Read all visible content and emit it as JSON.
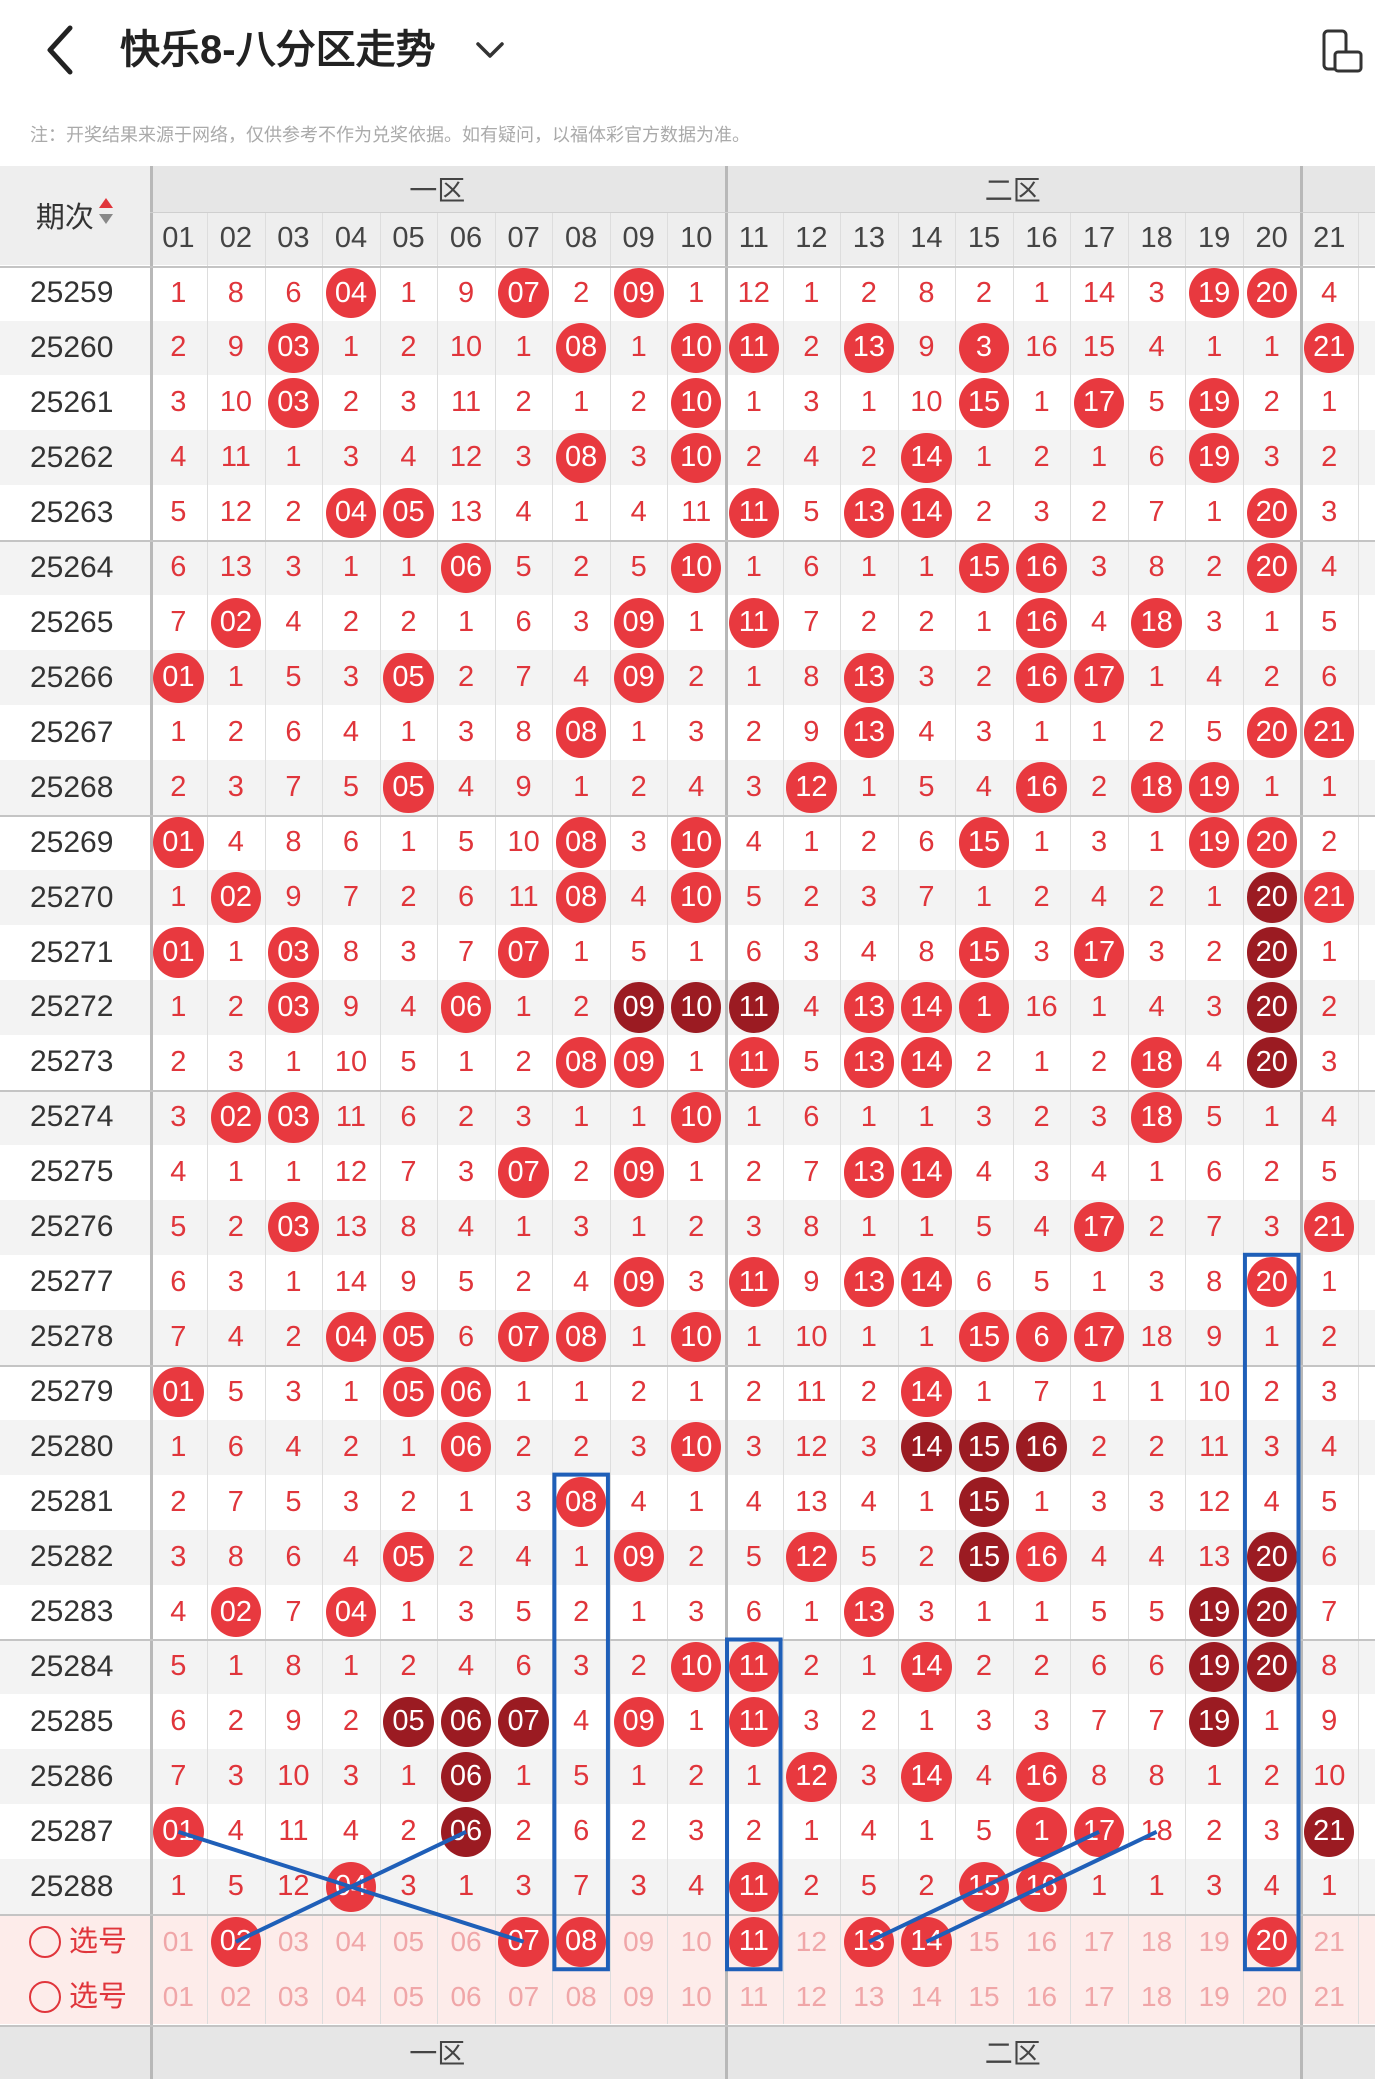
{
  "header": {
    "title": "快乐8-八分区走势",
    "note": "注：开奖结果来源于网络，仅供参考不作为兑奖依据。如有疑问，以福体彩官方数据为准。"
  },
  "table": {
    "period_header": "期次",
    "zones": [
      "一区",
      "二区"
    ],
    "columns": [
      "01",
      "02",
      "03",
      "04",
      "05",
      "06",
      "07",
      "08",
      "09",
      "10",
      "11",
      "12",
      "13",
      "14",
      "15",
      "16",
      "17",
      "18",
      "19",
      "20",
      "21"
    ],
    "periods": [
      "25259",
      "25260",
      "25261",
      "25262",
      "25263",
      "25264",
      "25265",
      "25266",
      "25267",
      "25268",
      "25269",
      "25270",
      "25271",
      "25272",
      "25273",
      "25274",
      "25275",
      "25276",
      "25277",
      "25278",
      "25279",
      "25280",
      "25281",
      "25282",
      "25283",
      "25284",
      "25285",
      "25286",
      "25287",
      "25288"
    ],
    "rows": [
      [
        "1",
        "8",
        "6",
        "04",
        "1",
        "9",
        "07",
        "2",
        "09",
        "1",
        "12",
        "1",
        "2",
        "8",
        "2",
        "1",
        "14",
        "3",
        "19",
        "20",
        "4"
      ],
      [
        "2",
        "9",
        "03",
        "1",
        "2",
        "10",
        "1",
        "08",
        "1",
        "10",
        "11",
        "2",
        "13",
        "9",
        "3",
        "16",
        "15",
        "4",
        "1",
        "1",
        "21"
      ],
      [
        "3",
        "10",
        "03",
        "2",
        "3",
        "11",
        "2",
        "1",
        "2",
        "10",
        "1",
        "3",
        "1",
        "10",
        "15",
        "1",
        "17",
        "5",
        "19",
        "2",
        "1"
      ],
      [
        "4",
        "11",
        "1",
        "3",
        "4",
        "12",
        "3",
        "08",
        "3",
        "10",
        "2",
        "4",
        "2",
        "14",
        "1",
        "2",
        "1",
        "6",
        "19",
        "3",
        "2"
      ],
      [
        "5",
        "12",
        "2",
        "04",
        "05",
        "13",
        "4",
        "1",
        "4",
        "11",
        "11",
        "5",
        "13",
        "14",
        "2",
        "3",
        "2",
        "7",
        "1",
        "20",
        "3"
      ],
      [
        "6",
        "13",
        "3",
        "1",
        "1",
        "06",
        "5",
        "2",
        "5",
        "10",
        "1",
        "6",
        "1",
        "1",
        "15",
        "16",
        "3",
        "8",
        "2",
        "20",
        "4"
      ],
      [
        "7",
        "02",
        "4",
        "2",
        "2",
        "1",
        "6",
        "3",
        "09",
        "1",
        "11",
        "7",
        "2",
        "2",
        "1",
        "16",
        "4",
        "18",
        "3",
        "1",
        "5"
      ],
      [
        "01",
        "1",
        "5",
        "3",
        "05",
        "2",
        "7",
        "4",
        "09",
        "2",
        "1",
        "8",
        "13",
        "3",
        "2",
        "16",
        "17",
        "1",
        "4",
        "2",
        "6"
      ],
      [
        "1",
        "2",
        "6",
        "4",
        "1",
        "3",
        "8",
        "08",
        "1",
        "3",
        "2",
        "9",
        "13",
        "4",
        "3",
        "1",
        "1",
        "2",
        "5",
        "20",
        "21"
      ],
      [
        "2",
        "3",
        "7",
        "5",
        "05",
        "4",
        "9",
        "1",
        "2",
        "4",
        "3",
        "12",
        "1",
        "5",
        "4",
        "16",
        "2",
        "18",
        "19",
        "1",
        "1"
      ],
      [
        "01",
        "4",
        "8",
        "6",
        "1",
        "5",
        "10",
        "08",
        "3",
        "10",
        "4",
        "1",
        "2",
        "6",
        "15",
        "1",
        "3",
        "1",
        "19",
        "20",
        "2"
      ],
      [
        "1",
        "02",
        "9",
        "7",
        "2",
        "6",
        "11",
        "08",
        "4",
        "10",
        "5",
        "2",
        "3",
        "7",
        "1",
        "2",
        "4",
        "2",
        "1",
        "20",
        "21"
      ],
      [
        "01",
        "1",
        "03",
        "8",
        "3",
        "7",
        "07",
        "1",
        "5",
        "1",
        "6",
        "3",
        "4",
        "8",
        "15",
        "3",
        "17",
        "3",
        "2",
        "20",
        "1"
      ],
      [
        "1",
        "2",
        "03",
        "9",
        "4",
        "06",
        "1",
        "2",
        "09",
        "10",
        "11",
        "4",
        "13",
        "14",
        "1",
        "16",
        "1",
        "4",
        "3",
        "20",
        "2"
      ],
      [
        "2",
        "3",
        "1",
        "10",
        "5",
        "1",
        "2",
        "08",
        "09",
        "1",
        "11",
        "5",
        "13",
        "14",
        "2",
        "1",
        "2",
        "18",
        "4",
        "20",
        "3"
      ],
      [
        "3",
        "02",
        "03",
        "11",
        "6",
        "2",
        "3",
        "1",
        "1",
        "10",
        "1",
        "6",
        "1",
        "1",
        "3",
        "2",
        "3",
        "18",
        "5",
        "1",
        "4"
      ],
      [
        "4",
        "1",
        "1",
        "12",
        "7",
        "3",
        "07",
        "2",
        "09",
        "1",
        "2",
        "7",
        "13",
        "14",
        "4",
        "3",
        "4",
        "1",
        "6",
        "2",
        "5"
      ],
      [
        "5",
        "2",
        "03",
        "13",
        "8",
        "4",
        "1",
        "3",
        "1",
        "2",
        "3",
        "8",
        "1",
        "1",
        "5",
        "4",
        "17",
        "2",
        "7",
        "3",
        "21"
      ],
      [
        "6",
        "3",
        "1",
        "14",
        "9",
        "5",
        "2",
        "4",
        "09",
        "3",
        "11",
        "9",
        "13",
        "14",
        "6",
        "5",
        "1",
        "3",
        "8",
        "20",
        "1"
      ],
      [
        "7",
        "4",
        "2",
        "04",
        "05",
        "6",
        "07",
        "08",
        "1",
        "10",
        "1",
        "10",
        "1",
        "1",
        "15",
        "6",
        "17",
        "18",
        "9",
        "1",
        "2"
      ],
      [
        "01",
        "5",
        "3",
        "1",
        "05",
        "06",
        "1",
        "1",
        "2",
        "1",
        "2",
        "11",
        "2",
        "14",
        "1",
        "7",
        "1",
        "1",
        "10",
        "2",
        "3"
      ],
      [
        "1",
        "6",
        "4",
        "2",
        "1",
        "06",
        "2",
        "2",
        "3",
        "10",
        "3",
        "12",
        "3",
        "14",
        "15",
        "16",
        "2",
        "2",
        "11",
        "3",
        "4"
      ],
      [
        "2",
        "7",
        "5",
        "3",
        "2",
        "1",
        "3",
        "08",
        "4",
        "1",
        "4",
        "13",
        "4",
        "1",
        "15",
        "1",
        "3",
        "3",
        "12",
        "4",
        "5"
      ],
      [
        "3",
        "8",
        "6",
        "4",
        "05",
        "2",
        "4",
        "1",
        "09",
        "2",
        "5",
        "12",
        "5",
        "2",
        "15",
        "16",
        "4",
        "4",
        "13",
        "20",
        "6"
      ],
      [
        "4",
        "02",
        "7",
        "04",
        "1",
        "3",
        "5",
        "2",
        "1",
        "3",
        "6",
        "1",
        "13",
        "3",
        "1",
        "1",
        "5",
        "5",
        "19",
        "20",
        "7"
      ],
      [
        "5",
        "1",
        "8",
        "1",
        "2",
        "4",
        "6",
        "3",
        "2",
        "10",
        "11",
        "2",
        "1",
        "14",
        "2",
        "2",
        "6",
        "6",
        "19",
        "20",
        "8"
      ],
      [
        "6",
        "2",
        "9",
        "2",
        "05",
        "06",
        "07",
        "4",
        "09",
        "1",
        "11",
        "3",
        "2",
        "1",
        "3",
        "3",
        "7",
        "7",
        "19",
        "1",
        "9"
      ],
      [
        "7",
        "3",
        "10",
        "3",
        "1",
        "06",
        "1",
        "5",
        "1",
        "2",
        "1",
        "12",
        "3",
        "14",
        "4",
        "16",
        "8",
        "8",
        "1",
        "2",
        "10"
      ],
      [
        "01",
        "4",
        "11",
        "4",
        "2",
        "06",
        "2",
        "6",
        "2",
        "3",
        "2",
        "1",
        "4",
        "1",
        "5",
        "1",
        "17",
        "18",
        "2",
        "3",
        "21"
      ],
      [
        "1",
        "5",
        "12",
        "04",
        "3",
        "1",
        "3",
        "7",
        "3",
        "4",
        "11",
        "2",
        "5",
        "2",
        "15",
        "16",
        "1",
        "1",
        "3",
        "4",
        "1"
      ]
    ],
    "ball_style": [
      "000100101000000000110",
      "001000010110101000001",
      "001000000100001010100",
      "000000010100010000100",
      "000110000010110000010",
      "000001000100001100010",
      "010000001010000101000",
      "100010001000100110000",
      "000000010000100000011",
      "000010000001000101100",
      "100000010100001000110",
      "010000010100000000021",
      "101000100000001010020",
      "001001002220111000020",
      "000000011010110001020",
      "011000000100000001000",
      "000000101000110000000",
      "001000000000000010001",
      "000000001010110000010",
      "000110110100001110000",
      "100011000000010000000",
      "000001000100022200000",
      "000000010000002000000",
      "000010001001002100020",
      "010100000000100000220",
      "000000000110010000220",
      "000022201010000000200",
      "000002000001010100000",
      "100002000000000110002",
      "000100000010001100000"
    ],
    "ball_colors": {
      "red": "#e8393f",
      "dark": "#9b1b22"
    },
    "pick_label": "选号",
    "pick_row1_selected": [
      false,
      true,
      false,
      false,
      false,
      false,
      true,
      true,
      false,
      false,
      true,
      false,
      true,
      true,
      false,
      false,
      false,
      false,
      false,
      true,
      false
    ],
    "pick_row2_selected": [
      false,
      false,
      false,
      false,
      false,
      false,
      false,
      false,
      false,
      false,
      false,
      false,
      false,
      false,
      false,
      false,
      false,
      false,
      false,
      false,
      false
    ]
  }
}
